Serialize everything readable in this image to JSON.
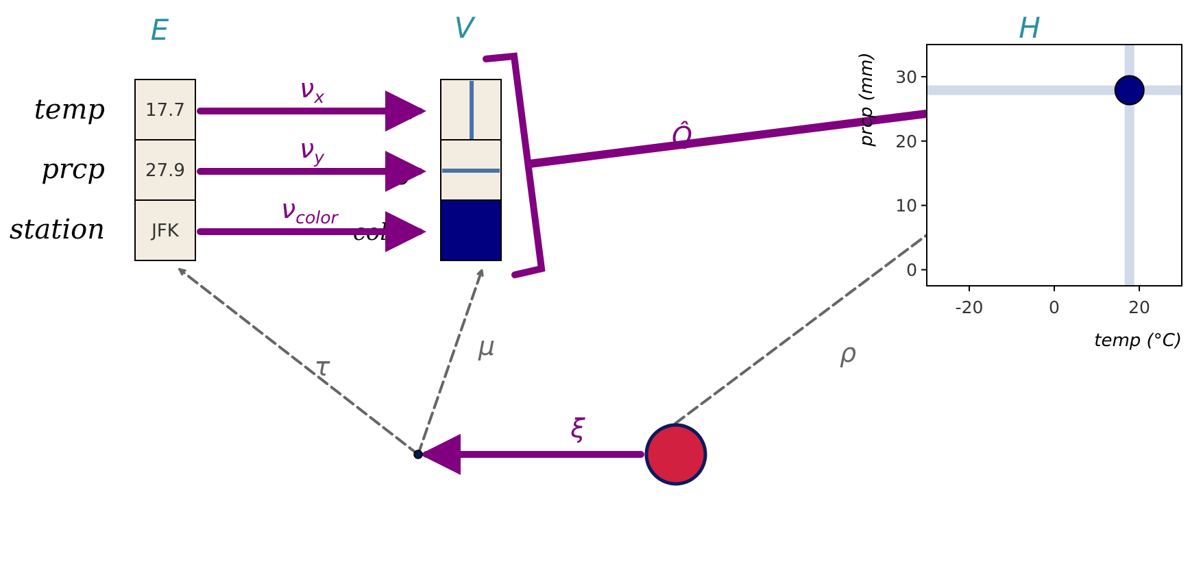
{
  "spaces": {
    "E": "E",
    "V": "V",
    "H": "H"
  },
  "fields": [
    {
      "name": "temp",
      "value": "17.7",
      "channel": "x",
      "map": "ν",
      "map_sub": "x"
    },
    {
      "name": "prcp",
      "value": "27.9",
      "channel": "y",
      "map": "ν",
      "map_sub": "y"
    },
    {
      "name": "station",
      "value": "JFK",
      "channel": "color",
      "map": "ν",
      "map_sub": "color"
    }
  ],
  "maps": {
    "Q": "Q̂",
    "xi": "ξ",
    "tau": "τ",
    "mu": "μ",
    "rho": "ρ"
  },
  "colors": {
    "purple": "#800080",
    "teal": "#2a8fa3",
    "navy": "#000080",
    "crimson": "#d22041",
    "cell_bg": "#f2ede0",
    "channel_line": "#4a72a8",
    "grey": "#666666"
  },
  "chart_data": {
    "type": "scatter",
    "title": "H",
    "xlabel": "temp (°C)",
    "ylabel": "prcp (mm)",
    "xlim": [
      -30,
      30
    ],
    "ylim": [
      -2.5,
      35
    ],
    "xticks": [
      -20,
      0,
      20
    ],
    "yticks": [
      0,
      10,
      20,
      30
    ],
    "xtick_labels": [
      "-20",
      "0",
      "20"
    ],
    "ytick_labels": [
      "0",
      "10",
      "20",
      "30"
    ],
    "points": [
      {
        "x": 17.7,
        "y": 27.9,
        "color": "#000080"
      }
    ],
    "guides": {
      "x": 17.7,
      "y": 27.9
    }
  }
}
